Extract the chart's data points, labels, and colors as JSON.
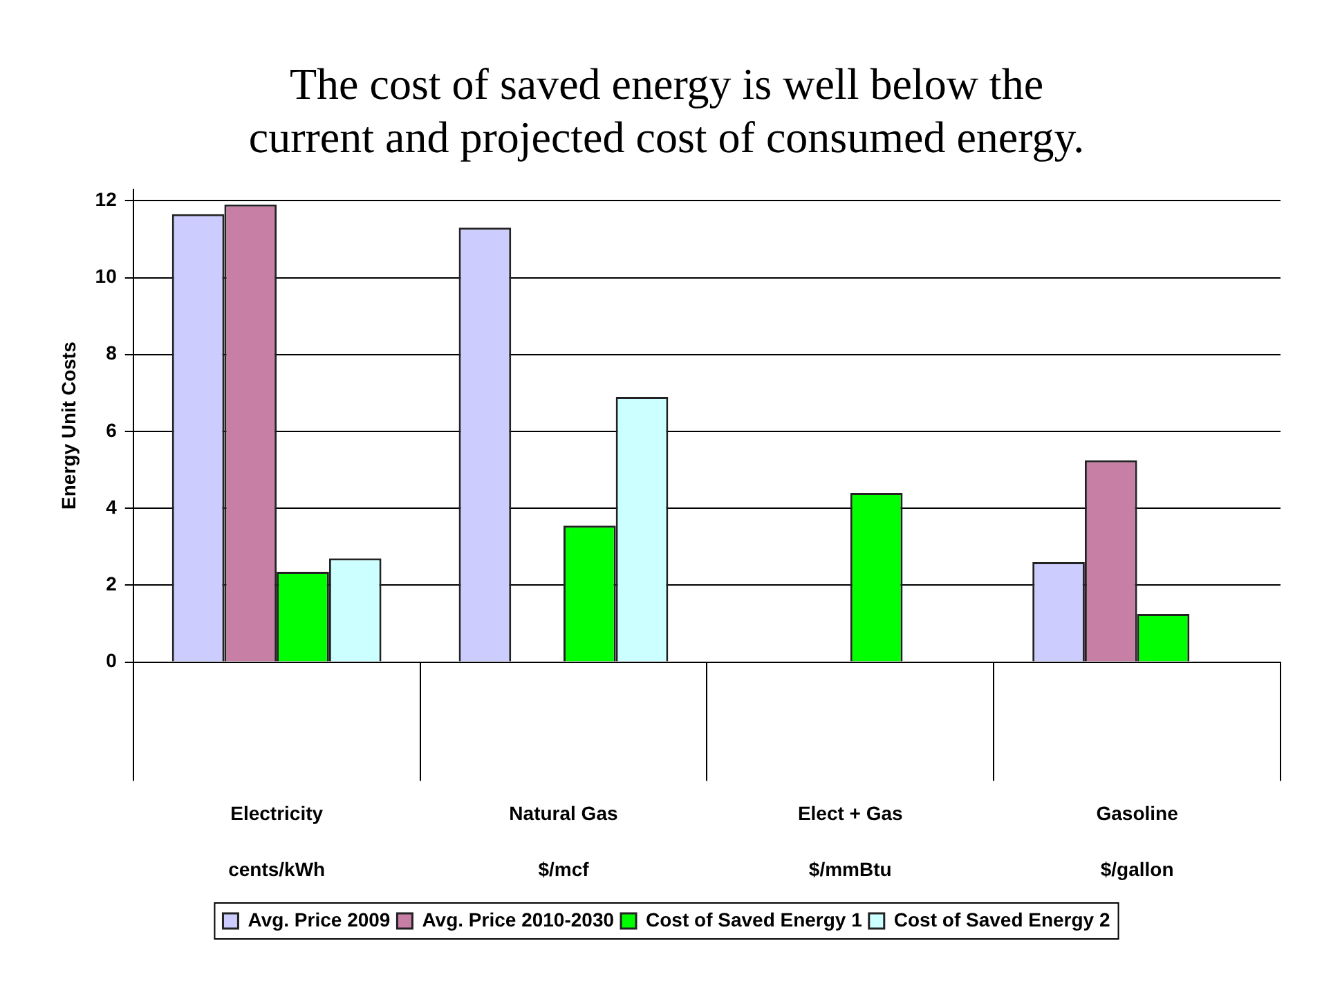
{
  "chart_data": {
    "type": "bar",
    "title": "The cost of saved energy is well below the current and projected cost of consumed energy.",
    "ylabel": "Energy Unit Costs",
    "categories": [
      "Electricity\ncents/kWh",
      "Natural Gas\n$/mcf",
      "Elect + Gas\n$/mmBtu",
      "Gasoline\n$/gallon"
    ],
    "series": [
      {
        "name": "Avg. Price 2009",
        "color": "#ccccff",
        "values": [
          11.65,
          11.3,
          null,
          2.6
        ]
      },
      {
        "name": "Avg. Price 2010-2030",
        "color": "#c77fa6",
        "values": [
          11.9,
          null,
          null,
          5.25
        ]
      },
      {
        "name": "Cost of Saved Energy 1",
        "color": "#00ff00",
        "values": [
          2.35,
          3.55,
          4.4,
          1.25
        ]
      },
      {
        "name": "Cost of Saved Energy 2",
        "color": "#ccffff",
        "values": [
          2.7,
          6.9,
          null,
          null
        ]
      }
    ],
    "ylim": [
      0,
      12.3
    ],
    "yticks": [
      0,
      2,
      4,
      6,
      8,
      10,
      12
    ],
    "grid": "y",
    "legend": "bottom"
  }
}
